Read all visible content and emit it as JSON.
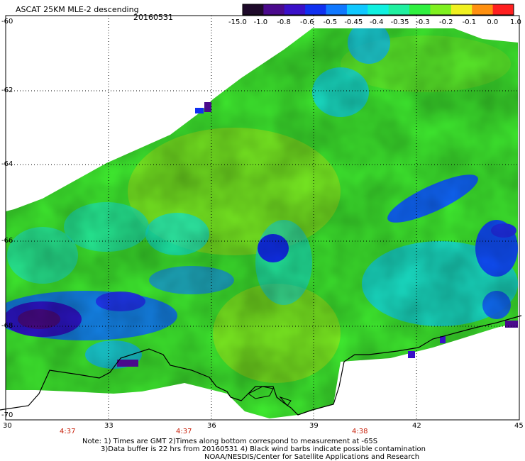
{
  "title": "ASCAT 25KM MLE-2 descending",
  "date": "20160531",
  "colorbar": {
    "labels": [
      "-15.0",
      "-1.0",
      "-0.8",
      "-0.6",
      "-0.5",
      "-0.45",
      "-0.4",
      "-0.35",
      "-0.3",
      "-0.2",
      "-0.1",
      "0.0",
      "1.0"
    ],
    "colors": [
      "#1e0a2a",
      "#4a0a8c",
      "#3a10c8",
      "#1030f0",
      "#1078ff",
      "#10c8ff",
      "#10f0e0",
      "#20f0a0",
      "#30f040",
      "#80f020",
      "#f0f020",
      "#ff9010",
      "#ff2020"
    ]
  },
  "lat_labels": [
    "-60",
    "-62",
    "-64",
    "-66",
    "-68",
    "-70"
  ],
  "lon_labels": [
    "30",
    "33",
    "36",
    "39",
    "42",
    "45"
  ],
  "times": [
    "4:37",
    "4:37",
    "4:38"
  ],
  "notes": [
    "Note: 1) Times are GMT 2)Times along bottom correspond to measurement at -65S",
    "3)Data buffer is 22 hrs from 20160531 4) Black wind barbs indicate possible contamination",
    "NOAA/NESDIS/Center for Satellite Applications and Research"
  ]
}
